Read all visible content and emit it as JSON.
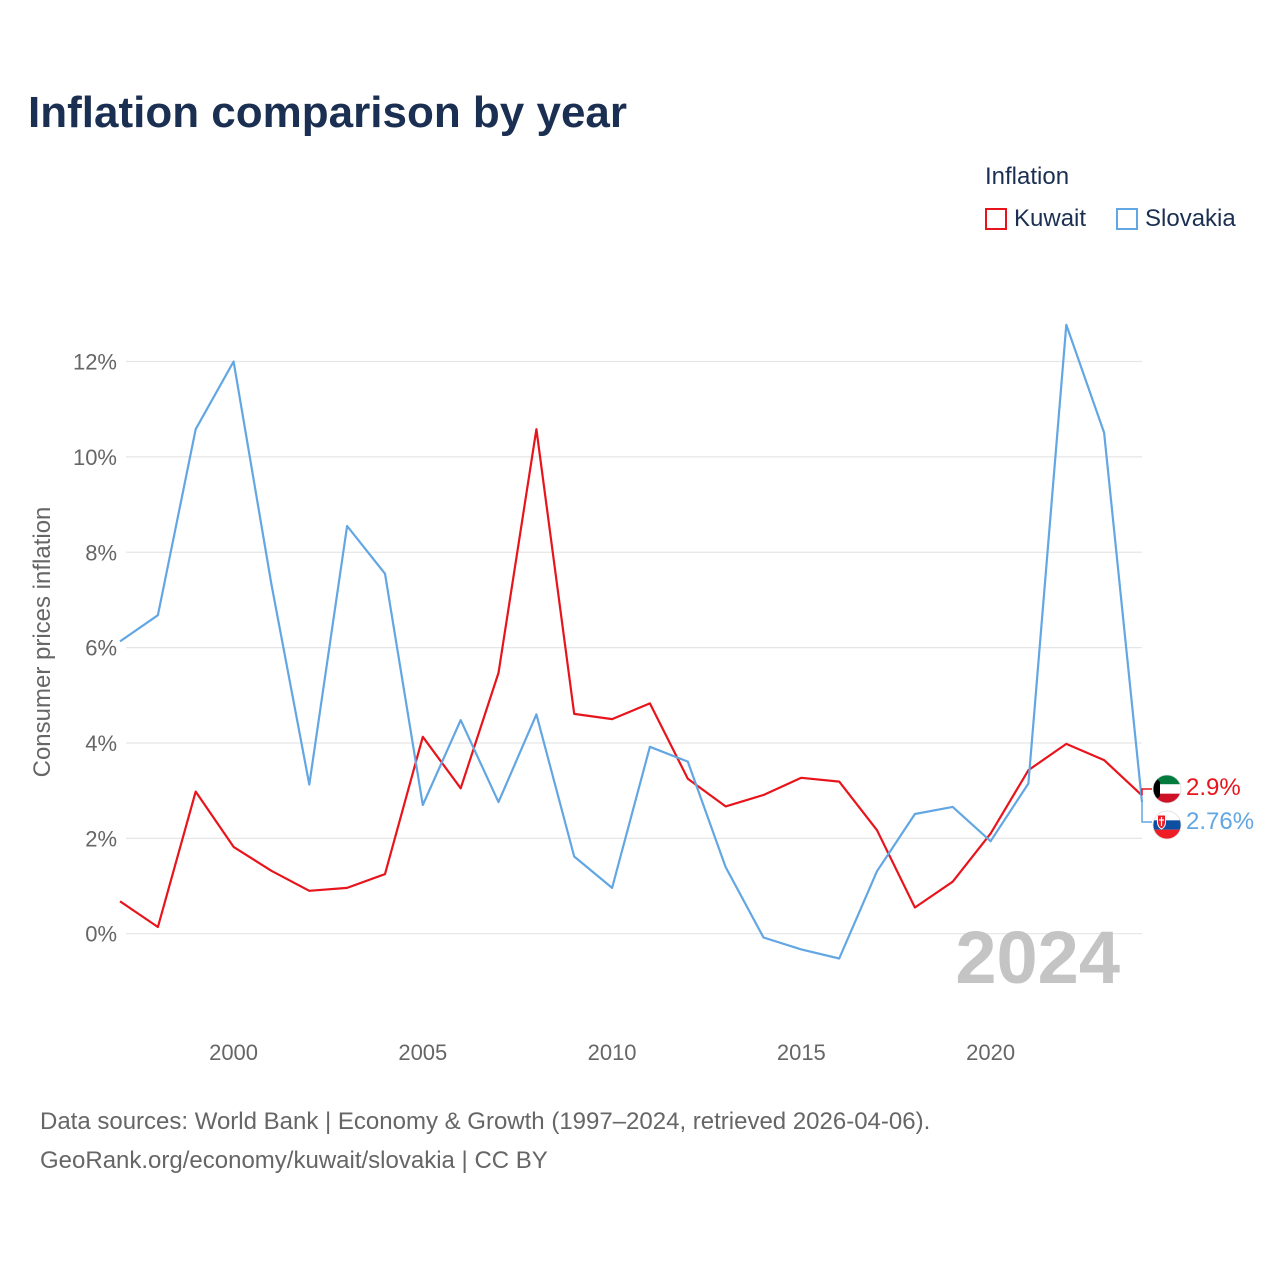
{
  "chart_data": {
    "type": "line",
    "title": "Inflation comparison by year",
    "legend_title": "Inflation",
    "ylabel": "Consumer prices inflation",
    "xlabel": "",
    "xlim": [
      1997,
      2024
    ],
    "ylim": [
      -1.6,
      13.5
    ],
    "x_ticks": [
      2000,
      2005,
      2010,
      2015,
      2020
    ],
    "y_ticks": [
      0,
      2,
      4,
      6,
      8,
      10,
      12
    ],
    "y_tick_labels": [
      "0%",
      "2%",
      "4%",
      "6%",
      "8%",
      "10%",
      "12%"
    ],
    "grid": true,
    "legend_position": "top-right",
    "year_watermark": "2024",
    "x": [
      1997,
      1998,
      1999,
      2000,
      2001,
      2002,
      2003,
      2004,
      2005,
      2006,
      2007,
      2008,
      2009,
      2010,
      2011,
      2012,
      2013,
      2014,
      2015,
      2016,
      2017,
      2018,
      2019,
      2020,
      2021,
      2022,
      2023,
      2024
    ],
    "series": [
      {
        "name": "Kuwait",
        "color": "#e8141c",
        "end_label": "2.9%",
        "values": [
          0.68,
          0.14,
          2.98,
          1.82,
          1.32,
          0.9,
          0.96,
          1.25,
          4.13,
          3.05,
          5.47,
          10.58,
          4.61,
          4.5,
          4.83,
          3.25,
          2.67,
          2.91,
          3.27,
          3.19,
          2.17,
          0.55,
          1.09,
          2.1,
          3.43,
          3.98,
          3.64,
          2.9
        ]
      },
      {
        "name": "Slovakia",
        "color": "#62a6e3",
        "end_label": "2.76%",
        "values": [
          6.13,
          6.68,
          10.58,
          12.0,
          7.33,
          3.13,
          8.55,
          7.55,
          2.7,
          4.48,
          2.76,
          4.6,
          1.62,
          0.96,
          3.92,
          3.61,
          1.4,
          -0.08,
          -0.33,
          -0.52,
          1.31,
          2.51,
          2.66,
          1.94,
          3.15,
          12.77,
          10.51,
          2.76
        ]
      }
    ]
  },
  "footer": {
    "line1": "Data sources: World Bank | Economy & Growth (1997–2024, retrieved 2026-04-06).",
    "line2": "GeoRank.org/economy/kuwait/slovakia | CC BY"
  }
}
